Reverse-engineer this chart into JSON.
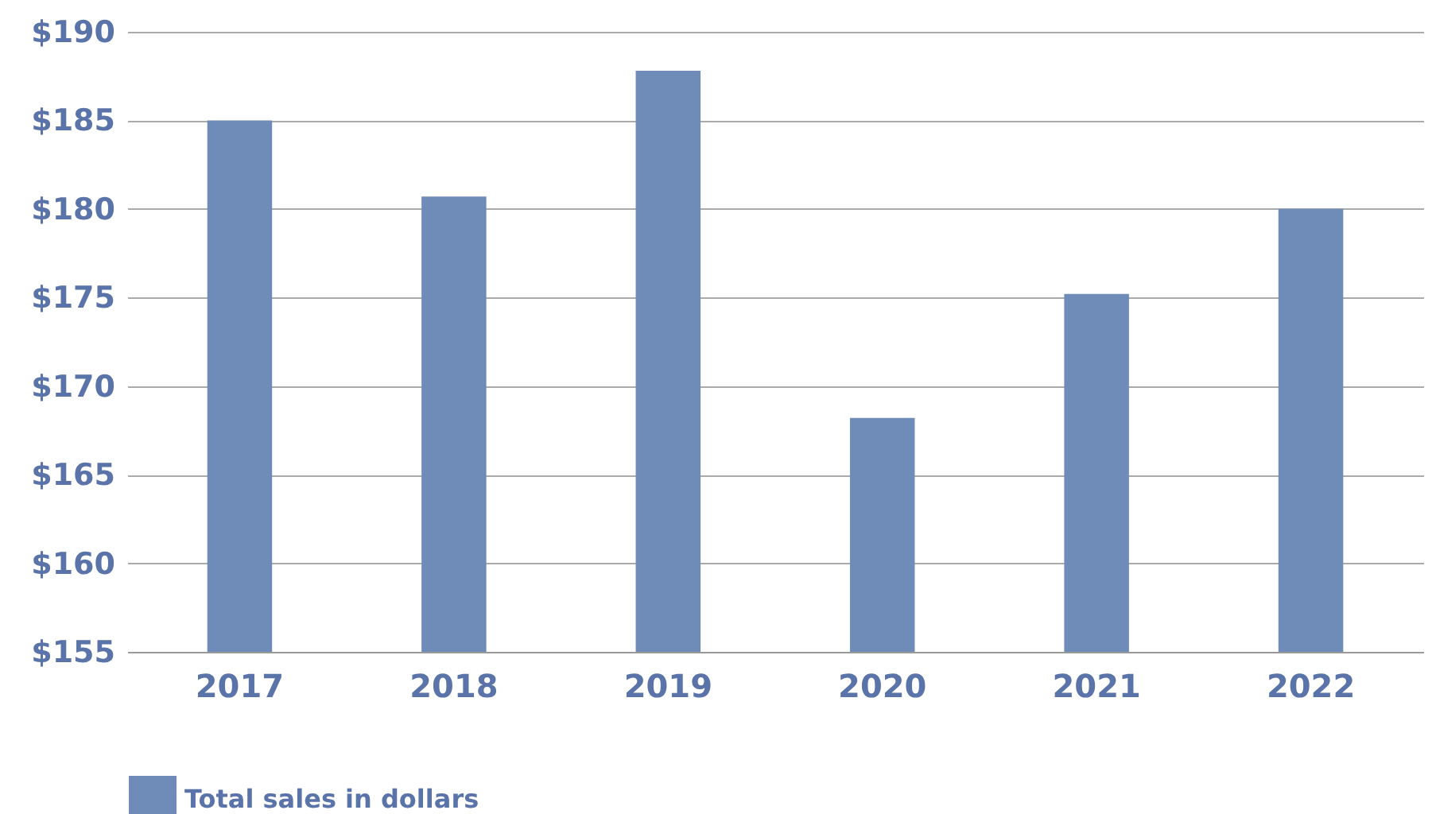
{
  "chart_data": {
    "type": "bar",
    "categories": [
      "2017",
      "2018",
      "2019",
      "2020",
      "2021",
      "2022"
    ],
    "series": [
      {
        "name": "Total sales in dollars",
        "color": "#6f8bb8",
        "values": [
          185,
          180.7,
          187.8,
          168.2,
          175.2,
          180
        ]
      }
    ],
    "ylim": [
      155,
      190
    ],
    "yticks": [
      {
        "value": 155,
        "label": "$155"
      },
      {
        "value": 160,
        "label": "$160"
      },
      {
        "value": 165,
        "label": "$165"
      },
      {
        "value": 170,
        "label": "$170"
      },
      {
        "value": 175,
        "label": "$175"
      },
      {
        "value": 180,
        "label": "$180"
      },
      {
        "value": 185,
        "label": "$185"
      },
      {
        "value": 190,
        "label": "$190"
      }
    ],
    "grid": "y",
    "legend": "bottom"
  }
}
